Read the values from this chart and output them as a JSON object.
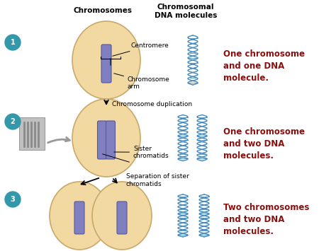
{
  "bg_color": "#ffffff",
  "cell_fill": "#f2d9a2",
  "cell_edge": "#c8a86b",
  "chromo_fill": "#8080c0",
  "chromo_edge": "#5555a0",
  "dna_color": "#4488bb",
  "label_color": "#000000",
  "red_color": "#8b1010",
  "teal_color": "#3399aa",
  "title_chromosomes": "Chromosomes",
  "title_dna": "Chromosomal\nDNA molecules",
  "step1_label": "Centromere",
  "step1_arm": "Chromosome\narm",
  "step1_dup": "Chromosome duplication",
  "step2_label": "Sister\nchromatids",
  "step2_sep": "Separation of sister\nchromatids",
  "step1_text": "One chromosome\nand one DNA\nmolecule.",
  "step2_text": "One chromosome\nand two DNA\nmolecules.",
  "step3_text": "Two chromosomes\nand two DNA\nmolecules.",
  "figsize": [
    4.74,
    3.55
  ],
  "dpi": 100
}
